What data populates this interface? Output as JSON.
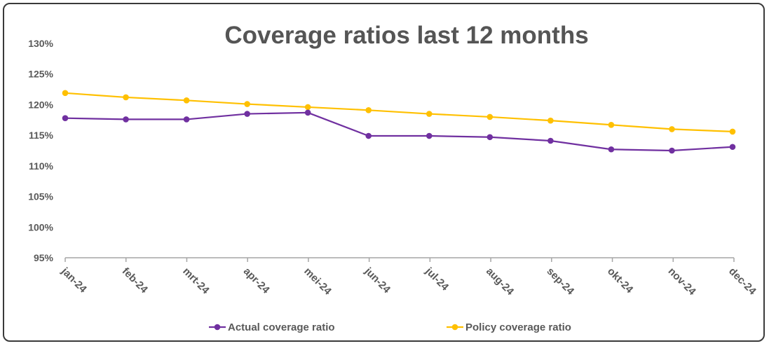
{
  "chart_data": {
    "type": "line",
    "title": "Coverage ratios last 12 months",
    "categories": [
      "jan-24",
      "feb-24",
      "mrt-24",
      "apr-24",
      "mei-24",
      "jun-24",
      "jul-24",
      "aug-24",
      "sep-24",
      "okt-24",
      "nov-24",
      "dec-24"
    ],
    "y_ticks": [
      "95%",
      "100%",
      "105%",
      "110%",
      "115%",
      "120%",
      "125%",
      "130%"
    ],
    "ylim": [
      95,
      130
    ],
    "y_unit": "%",
    "grid": false,
    "legend_position": "bottom",
    "series": [
      {
        "name": "Actual coverage ratio",
        "color": "#7030a0",
        "values": [
          117.8,
          117.6,
          117.6,
          118.5,
          118.7,
          114.9,
          114.9,
          114.7,
          114.1,
          112.7,
          112.5,
          113.1
        ]
      },
      {
        "name": "Policy coverage ratio",
        "color": "#ffc000",
        "values": [
          121.9,
          121.2,
          120.7,
          120.1,
          119.6,
          119.1,
          118.5,
          118.0,
          117.4,
          116.7,
          116.0,
          115.6
        ]
      }
    ]
  }
}
